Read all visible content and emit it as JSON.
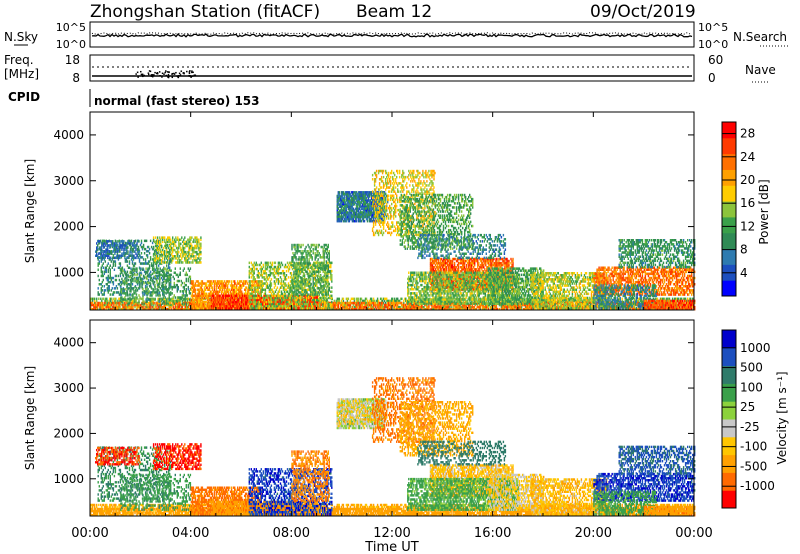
{
  "header": {
    "station": "Zhongshan Station (fitACF)",
    "beam": "Beam 12",
    "date": "09/Oct/2019"
  },
  "noise_panel": {
    "left_label": "N.Sky",
    "left_ticks": [
      "10^5",
      "10^0"
    ],
    "right_ticks": [
      "10^5",
      "10^0"
    ],
    "right_label": "N.Search"
  },
  "freq_panel": {
    "left_label_1": "Freq.",
    "left_label_2": "[MHz]",
    "left_ticks": [
      "18",
      "8"
    ],
    "right_ticks": [
      "60",
      "0"
    ],
    "right_label": "Nave"
  },
  "cpid": {
    "label": "CPID",
    "mode_text": "normal (fast stereo) 153"
  },
  "x_axis": {
    "ticks": [
      "00:00",
      "04:00",
      "08:00",
      "12:00",
      "16:00",
      "20:00",
      "00:00"
    ],
    "label": "Time UT"
  },
  "colors": {
    "power_scale": [
      "#0000ff",
      "#1c4fbf",
      "#2e7bb0",
      "#2f8a55",
      "#3aa04a",
      "#8cc43c",
      "#ffcc00",
      "#ffa000",
      "#ff7000",
      "#ff3a00",
      "#ff0000"
    ],
    "velocity_scale": [
      "#ff0000",
      "#ff6a00",
      "#ffa000",
      "#ffc600",
      "#c8c8c8",
      "#8cd23c",
      "#3aa04a",
      "#2f7b6a",
      "#1c4fbf",
      "#0000cc"
    ]
  },
  "chart_data": [
    {
      "type": "heatmap",
      "title": "",
      "xlabel": "Time UT",
      "ylabel": "Slant Range [km]",
      "ylim": [
        180,
        4500
      ],
      "y_ticks": [
        "1000",
        "2000",
        "3000",
        "4000"
      ],
      "colorbar_label": "Power [dB]",
      "colorbar_ticks": [
        "4",
        "8",
        "12",
        "16",
        "20",
        "24",
        "28"
      ],
      "colorbar_range": [
        0,
        30
      ]
    },
    {
      "type": "heatmap",
      "title": "",
      "xlabel": "Time UT",
      "ylabel": "Slant Range [km]",
      "ylim": [
        180,
        4500
      ],
      "y_ticks": [
        "1000",
        "2000",
        "3000",
        "4000"
      ],
      "colorbar_label": "Velocity [m s⁻¹]",
      "colorbar_ticks": [
        "1000",
        "500",
        "100",
        "25",
        "-25",
        "-100",
        "-500",
        "-1000"
      ]
    }
  ]
}
